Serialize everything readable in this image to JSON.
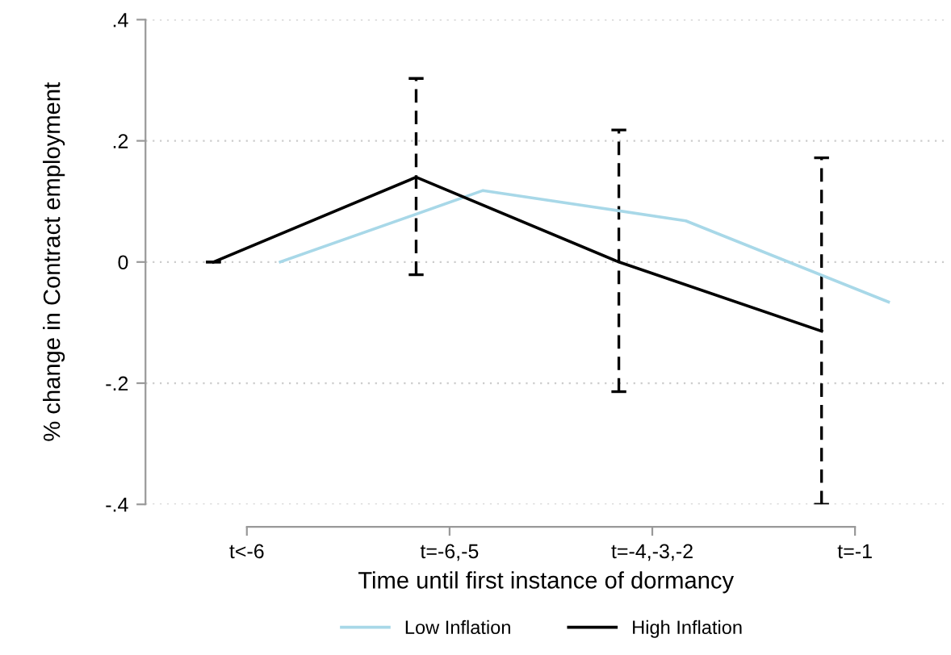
{
  "chart_data": {
    "type": "line",
    "xlabel": "Time until first instance of dormancy",
    "ylabel": "% change in Contract employment",
    "categories": [
      "t<-6",
      "t=-6,-5",
      "t=-4,-3,-2",
      "t=-1"
    ],
    "ylim": [
      -0.4,
      0.4
    ],
    "yticks": [
      {
        "value": 0.4,
        "label": ".4"
      },
      {
        "value": 0.2,
        "label": ".2"
      },
      {
        "value": 0,
        "label": "0"
      },
      {
        "value": -0.2,
        "label": "-.2"
      },
      {
        "value": -0.4,
        "label": "-.4"
      }
    ],
    "grid": "y",
    "legend": "bottom",
    "series": [
      {
        "name": "Low Inflation",
        "color": "#a8d8e8",
        "values": [
          0,
          0.118,
          0.068,
          -0.066
        ]
      },
      {
        "name": "High Inflation",
        "color": "#000000",
        "values": [
          0,
          0.14,
          0,
          -0.114
        ],
        "errors": [
          [
            0,
            0
          ],
          [
            -0.021,
            0.303
          ],
          [
            -0.214,
            0.218
          ],
          [
            -0.4,
            0.172
          ]
        ]
      }
    ]
  }
}
